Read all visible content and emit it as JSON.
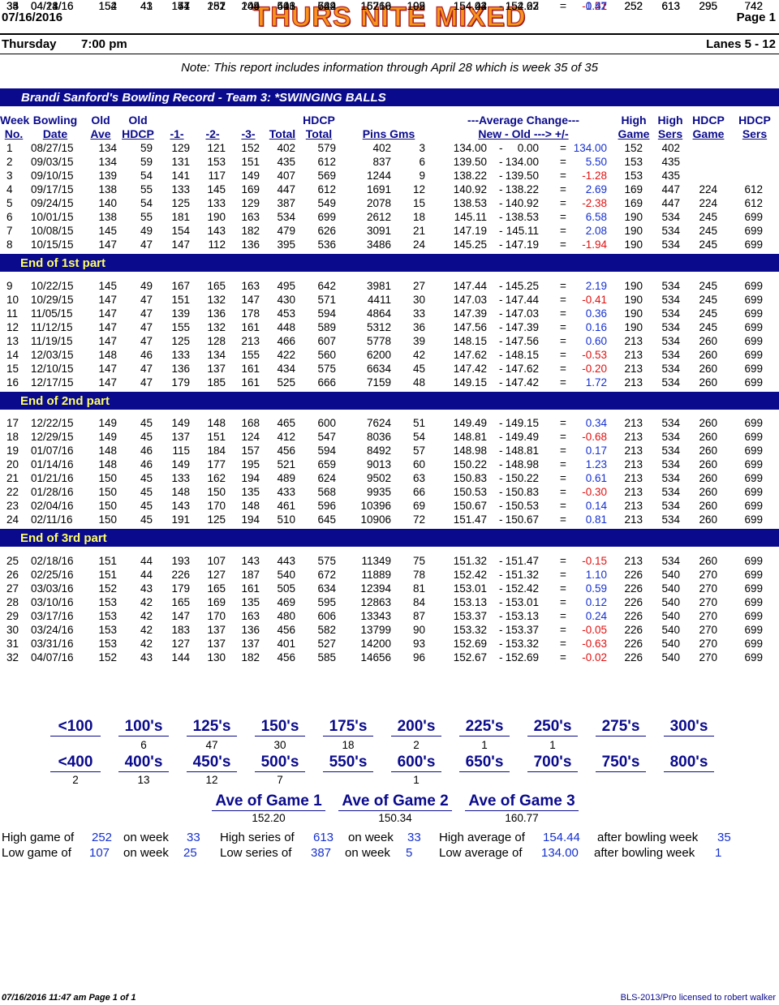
{
  "header": {
    "date": "07/16/2016",
    "title": "THURS NITE MIXED",
    "page": "Page 1",
    "day": "Thursday",
    "time": "7:00 pm",
    "lanes": "Lanes 5 - 12",
    "note": "Note: This report includes information through April 28   which is week 35 of 35"
  },
  "record_title": "Brandi Sanford's Bowling Record  - Team 3: *SWINGING BALLS",
  "columns": {
    "week": [
      "Week",
      "No."
    ],
    "date": [
      "Bowling",
      "Date"
    ],
    "oldave": [
      "Old",
      "Ave"
    ],
    "oldhdcp": [
      "Old",
      "HDCP"
    ],
    "g1": "-1-",
    "g2": "-2-",
    "g3": "-3-",
    "total": "Total",
    "hdcptotal": [
      "HDCP",
      "Total"
    ],
    "pinsgms": "Pins  Gms",
    "avgchange": [
      "---Average Change---",
      "New - Old ---> +/-"
    ],
    "highgame": [
      "High",
      "Game"
    ],
    "highsers": [
      "High",
      "Sers"
    ],
    "hdcpgame": [
      "HDCP",
      "Game"
    ],
    "hdcpsers": [
      "HDCP",
      "Sers"
    ]
  },
  "parts": [
    "End of 1st part",
    "End of 2nd part",
    "End of 3rd part"
  ],
  "rows": [
    [
      "1",
      "08/27/15",
      "134",
      "59",
      "129",
      "121",
      "152",
      "402",
      "579",
      "402",
      "3",
      "134.00",
      "0.00",
      "134.00",
      "152",
      "402",
      "",
      ""
    ],
    [
      "2",
      "09/03/15",
      "134",
      "59",
      "131",
      "153",
      "151",
      "435",
      "612",
      "837",
      "6",
      "139.50",
      "134.00",
      "5.50",
      "153",
      "435",
      "",
      ""
    ],
    [
      "3",
      "09/10/15",
      "139",
      "54",
      "141",
      "117",
      "149",
      "407",
      "569",
      "1244",
      "9",
      "138.22",
      "139.50",
      "-1.28",
      "153",
      "435",
      "",
      ""
    ],
    [
      "4",
      "09/17/15",
      "138",
      "55",
      "133",
      "145",
      "169",
      "447",
      "612",
      "1691",
      "12",
      "140.92",
      "138.22",
      "2.69",
      "169",
      "447",
      "224",
      "612"
    ],
    [
      "5",
      "09/24/15",
      "140",
      "54",
      "125",
      "133",
      "129",
      "387",
      "549",
      "2078",
      "15",
      "138.53",
      "140.92",
      "-2.38",
      "169",
      "447",
      "224",
      "612"
    ],
    [
      "6",
      "10/01/15",
      "138",
      "55",
      "181",
      "190",
      "163",
      "534",
      "699",
      "2612",
      "18",
      "145.11",
      "138.53",
      "6.58",
      "190",
      "534",
      "245",
      "699"
    ],
    [
      "7",
      "10/08/15",
      "145",
      "49",
      "154",
      "143",
      "182",
      "479",
      "626",
      "3091",
      "21",
      "147.19",
      "145.11",
      "2.08",
      "190",
      "534",
      "245",
      "699"
    ],
    [
      "8",
      "10/15/15",
      "147",
      "47",
      "147",
      "112",
      "136",
      "395",
      "536",
      "3486",
      "24",
      "145.25",
      "147.19",
      "-1.94",
      "190",
      "534",
      "245",
      "699"
    ],
    [
      "9",
      "10/22/15",
      "145",
      "49",
      "167",
      "165",
      "163",
      "495",
      "642",
      "3981",
      "27",
      "147.44",
      "145.25",
      "2.19",
      "190",
      "534",
      "245",
      "699"
    ],
    [
      "10",
      "10/29/15",
      "147",
      "47",
      "151",
      "132",
      "147",
      "430",
      "571",
      "4411",
      "30",
      "147.03",
      "147.44",
      "-0.41",
      "190",
      "534",
      "245",
      "699"
    ],
    [
      "11",
      "11/05/15",
      "147",
      "47",
      "139",
      "136",
      "178",
      "453",
      "594",
      "4864",
      "33",
      "147.39",
      "147.03",
      "0.36",
      "190",
      "534",
      "245",
      "699"
    ],
    [
      "12",
      "11/12/15",
      "147",
      "47",
      "155",
      "132",
      "161",
      "448",
      "589",
      "5312",
      "36",
      "147.56",
      "147.39",
      "0.16",
      "190",
      "534",
      "245",
      "699"
    ],
    [
      "13",
      "11/19/15",
      "147",
      "47",
      "125",
      "128",
      "213",
      "466",
      "607",
      "5778",
      "39",
      "148.15",
      "147.56",
      "0.60",
      "213",
      "534",
      "260",
      "699"
    ],
    [
      "14",
      "12/03/15",
      "148",
      "46",
      "133",
      "134",
      "155",
      "422",
      "560",
      "6200",
      "42",
      "147.62",
      "148.15",
      "-0.53",
      "213",
      "534",
      "260",
      "699"
    ],
    [
      "15",
      "12/10/15",
      "147",
      "47",
      "136",
      "137",
      "161",
      "434",
      "575",
      "6634",
      "45",
      "147.42",
      "147.62",
      "-0.20",
      "213",
      "534",
      "260",
      "699"
    ],
    [
      "16",
      "12/17/15",
      "147",
      "47",
      "179",
      "185",
      "161",
      "525",
      "666",
      "7159",
      "48",
      "149.15",
      "147.42",
      "1.72",
      "213",
      "534",
      "260",
      "699"
    ],
    [
      "17",
      "12/22/15",
      "149",
      "45",
      "149",
      "148",
      "168",
      "465",
      "600",
      "7624",
      "51",
      "149.49",
      "149.15",
      "0.34",
      "213",
      "534",
      "260",
      "699"
    ],
    [
      "18",
      "12/29/15",
      "149",
      "45",
      "137",
      "151",
      "124",
      "412",
      "547",
      "8036",
      "54",
      "148.81",
      "149.49",
      "-0.68",
      "213",
      "534",
      "260",
      "699"
    ],
    [
      "19",
      "01/07/16",
      "148",
      "46",
      "115",
      "184",
      "157",
      "456",
      "594",
      "8492",
      "57",
      "148.98",
      "148.81",
      "0.17",
      "213",
      "534",
      "260",
      "699"
    ],
    [
      "20",
      "01/14/16",
      "148",
      "46",
      "149",
      "177",
      "195",
      "521",
      "659",
      "9013",
      "60",
      "150.22",
      "148.98",
      "1.23",
      "213",
      "534",
      "260",
      "699"
    ],
    [
      "21",
      "01/21/16",
      "150",
      "45",
      "133",
      "162",
      "194",
      "489",
      "624",
      "9502",
      "63",
      "150.83",
      "150.22",
      "0.61",
      "213",
      "534",
      "260",
      "699"
    ],
    [
      "22",
      "01/28/16",
      "150",
      "45",
      "148",
      "150",
      "135",
      "433",
      "568",
      "9935",
      "66",
      "150.53",
      "150.83",
      "-0.30",
      "213",
      "534",
      "260",
      "699"
    ],
    [
      "23",
      "02/04/16",
      "150",
      "45",
      "143",
      "170",
      "148",
      "461",
      "596",
      "10396",
      "69",
      "150.67",
      "150.53",
      "0.14",
      "213",
      "534",
      "260",
      "699"
    ],
    [
      "24",
      "02/11/16",
      "150",
      "45",
      "191",
      "125",
      "194",
      "510",
      "645",
      "10906",
      "72",
      "151.47",
      "150.67",
      "0.81",
      "213",
      "534",
      "260",
      "699"
    ],
    [
      "25",
      "02/18/16",
      "151",
      "44",
      "193",
      "107",
      "143",
      "443",
      "575",
      "11349",
      "75",
      "151.32",
      "151.47",
      "-0.15",
      "213",
      "534",
      "260",
      "699"
    ],
    [
      "26",
      "02/25/16",
      "151",
      "44",
      "226",
      "127",
      "187",
      "540",
      "672",
      "11889",
      "78",
      "152.42",
      "151.32",
      "1.10",
      "226",
      "540",
      "270",
      "699"
    ],
    [
      "27",
      "03/03/16",
      "152",
      "43",
      "179",
      "165",
      "161",
      "505",
      "634",
      "12394",
      "81",
      "153.01",
      "152.42",
      "0.59",
      "226",
      "540",
      "270",
      "699"
    ],
    [
      "28",
      "03/10/16",
      "153",
      "42",
      "165",
      "169",
      "135",
      "469",
      "595",
      "12863",
      "84",
      "153.13",
      "153.01",
      "0.12",
      "226",
      "540",
      "270",
      "699"
    ],
    [
      "29",
      "03/17/16",
      "153",
      "42",
      "147",
      "170",
      "163",
      "480",
      "606",
      "13343",
      "87",
      "153.37",
      "153.13",
      "0.24",
      "226",
      "540",
      "270",
      "699"
    ],
    [
      "30",
      "03/24/16",
      "153",
      "42",
      "183",
      "137",
      "136",
      "456",
      "582",
      "13799",
      "90",
      "153.32",
      "153.37",
      "-0.05",
      "226",
      "540",
      "270",
      "699"
    ],
    [
      "31",
      "03/31/16",
      "153",
      "42",
      "127",
      "137",
      "137",
      "401",
      "527",
      "14200",
      "93",
      "152.69",
      "153.32",
      "-0.63",
      "226",
      "540",
      "270",
      "699"
    ],
    [
      "32",
      "04/07/16",
      "152",
      "43",
      "144",
      "130",
      "182",
      "456",
      "585",
      "14656",
      "96",
      "152.67",
      "152.69",
      "-0.02",
      "226",
      "540",
      "270",
      "699"
    ],
    [
      "33",
      "04/14/16",
      "152",
      "43",
      "157",
      "252",
      "204",
      "613",
      "742",
      "15269",
      "99",
      "154.23",
      "152.67",
      "1.57",
      "252",
      "613",
      "295",
      "742"
    ],
    [
      "34",
      "04/21/16",
      "154",
      "41",
      "141",
      "151",
      "149",
      "441",
      "564",
      "15710",
      "102",
      "154.02",
      "154.23",
      "-0.21",
      "252",
      "613",
      "295",
      "742"
    ],
    [
      "35",
      "04/28/16",
      "154",
      "41",
      "174",
      "187",
      "145",
      "506",
      "629",
      "16216",
      "105",
      "154.44",
      "154.02",
      "0.42",
      "252",
      "613",
      "295",
      "742"
    ]
  ],
  "dist_games": [
    {
      "label": "<100",
      "val": ""
    },
    {
      "label": "100's",
      "val": "6"
    },
    {
      "label": "125's",
      "val": "47"
    },
    {
      "label": "150's",
      "val": "30"
    },
    {
      "label": "175's",
      "val": "18"
    },
    {
      "label": "200's",
      "val": "2"
    },
    {
      "label": "225's",
      "val": "1"
    },
    {
      "label": "250's",
      "val": "1"
    },
    {
      "label": "275's",
      "val": ""
    },
    {
      "label": "300's",
      "val": ""
    }
  ],
  "dist_series": [
    {
      "label": "<400",
      "val": "2"
    },
    {
      "label": "400's",
      "val": "13"
    },
    {
      "label": "450's",
      "val": "12"
    },
    {
      "label": "500's",
      "val": "7"
    },
    {
      "label": "550's",
      "val": ""
    },
    {
      "label": "600's",
      "val": "1"
    },
    {
      "label": "650's",
      "val": ""
    },
    {
      "label": "700's",
      "val": ""
    },
    {
      "label": "750's",
      "val": ""
    },
    {
      "label": "800's",
      "val": ""
    }
  ],
  "game_avgs": [
    {
      "label": "Ave of Game 1",
      "val": "152.20"
    },
    {
      "label": "Ave of Game 2",
      "val": "150.34"
    },
    {
      "label": "Ave of Game 3",
      "val": "160.77"
    }
  ],
  "summary": {
    "high_game_label": "High game of",
    "high_game": "252",
    "high_game_week_label": "on week",
    "high_game_week": "33",
    "high_series_label": "High series of",
    "high_series": "613",
    "high_series_week_label": "on week",
    "high_series_week": "33",
    "high_avg_label": "High average of",
    "high_avg": "154.44",
    "high_avg_week_label": "after bowling week",
    "high_avg_week": "35",
    "low_game_label": "Low game of",
    "low_game": "107",
    "low_game_week_label": "on week",
    "low_game_week": "25",
    "low_series_label": "Low series of",
    "low_series": "387",
    "low_series_week_label": "on week",
    "low_series_week": "5",
    "low_avg_label": "Low average of",
    "low_avg": "134.00",
    "low_avg_week_label": "after bowling week",
    "low_avg_week": "1"
  },
  "footer": {
    "left": "07/16/2016  11:47 am  Page 1 of 1",
    "right": "BLS-2013/Pro licensed to robert walker"
  }
}
